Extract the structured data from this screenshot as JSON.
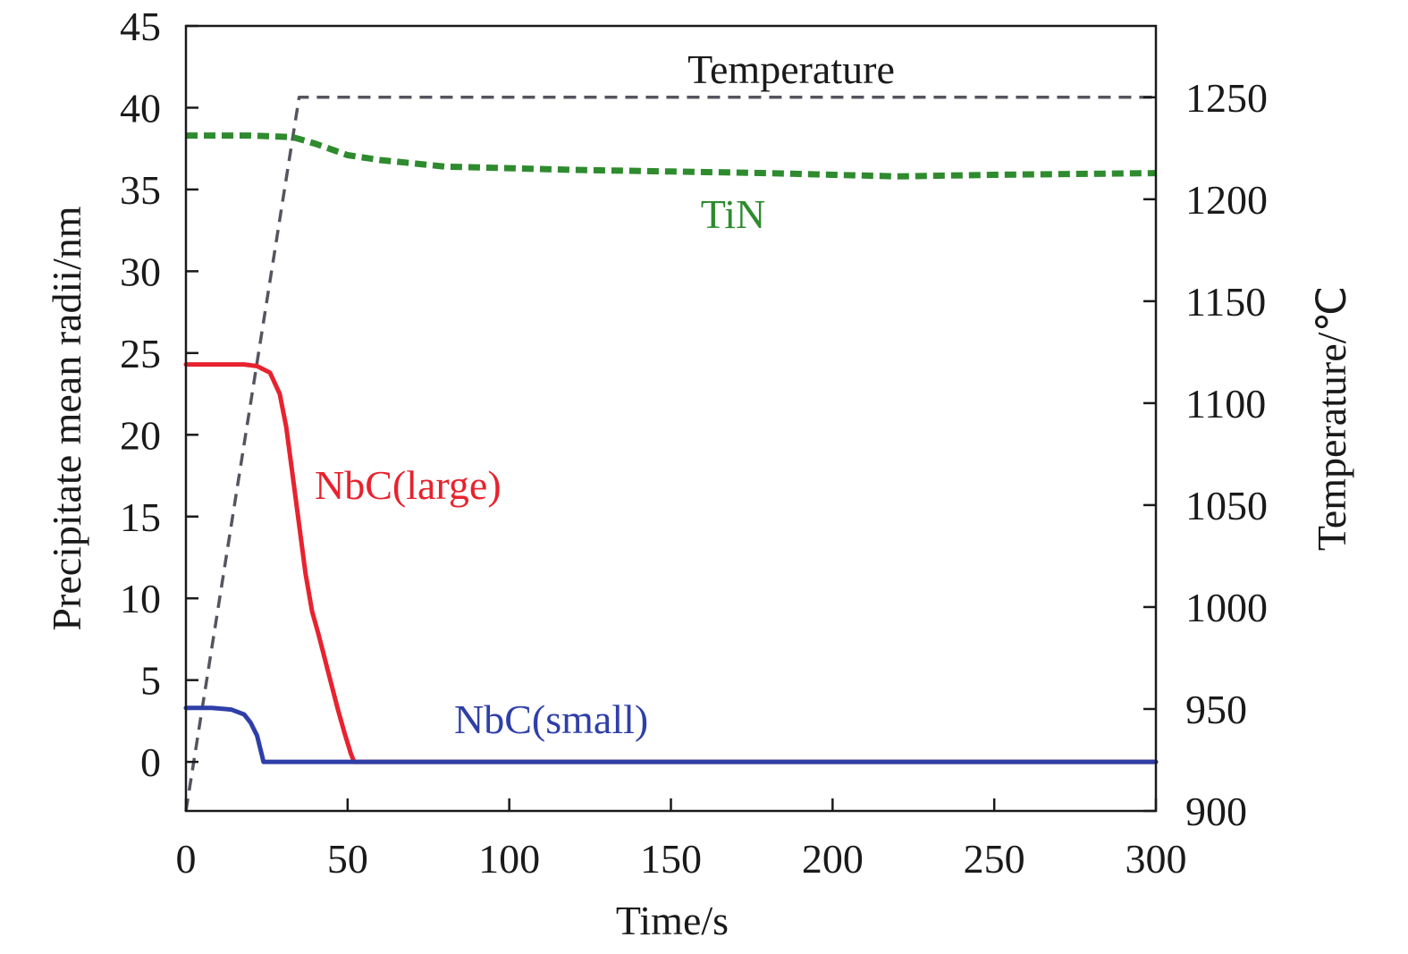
{
  "chart_data": {
    "type": "line",
    "xlabel": "Time/s",
    "ylabel": "Precipitate mean radii/nm",
    "y2label": "Temperature/℃",
    "xlim": [
      0,
      300
    ],
    "ylim": [
      -3,
      45
    ],
    "y2lim": [
      900,
      1285
    ],
    "x_ticks": [
      0,
      50,
      100,
      150,
      200,
      250,
      300
    ],
    "y_ticks": [
      0,
      5,
      10,
      15,
      20,
      25,
      30,
      35,
      40,
      45
    ],
    "y2_ticks": [
      900,
      950,
      1000,
      1050,
      1100,
      1150,
      1200,
      1250
    ],
    "grid": false,
    "legend": "none",
    "series": [
      {
        "name": "Temperature",
        "axis": "right",
        "color": "#55555f",
        "style": "dashed",
        "x": [
          0,
          35,
          300
        ],
        "y": [
          900,
          1250,
          1250
        ]
      },
      {
        "name": "TiN",
        "axis": "left",
        "color": "#2e8b2e",
        "style": "dashed",
        "x": [
          0,
          10,
          20,
          33,
          40,
          50,
          60,
          70,
          80,
          100,
          120,
          150,
          180,
          200,
          220,
          250,
          300
        ],
        "y": [
          38.3,
          38.3,
          38.3,
          38.2,
          37.8,
          37.1,
          36.8,
          36.6,
          36.4,
          36.3,
          36.2,
          36.1,
          36.0,
          35.9,
          35.8,
          35.9,
          36.0
        ]
      },
      {
        "name": "NbC(large)",
        "axis": "left",
        "color": "#e8222e",
        "style": "solid",
        "x": [
          0,
          10,
          18,
          22,
          26,
          29,
          31,
          33,
          35,
          37,
          39,
          41,
          44,
          47,
          49,
          51,
          52,
          300
        ],
        "y": [
          24.3,
          24.3,
          24.3,
          24.2,
          23.8,
          22.5,
          20.5,
          17.5,
          14.5,
          11.5,
          9.2,
          7.8,
          5.5,
          3.2,
          1.8,
          0.5,
          0,
          0
        ]
      },
      {
        "name": "NbC(small)",
        "axis": "left",
        "color": "#2f3fa8",
        "style": "solid",
        "x": [
          0,
          8,
          14,
          18,
          20,
          22,
          23,
          24,
          300
        ],
        "y": [
          3.3,
          3.3,
          3.2,
          2.9,
          2.4,
          1.6,
          0.8,
          0,
          0
        ]
      }
    ],
    "annotations": {
      "temperature": "Temperature",
      "tin": "TiN",
      "nbc_large": "NbC(large)",
      "nbc_small": "NbC(small)"
    }
  }
}
